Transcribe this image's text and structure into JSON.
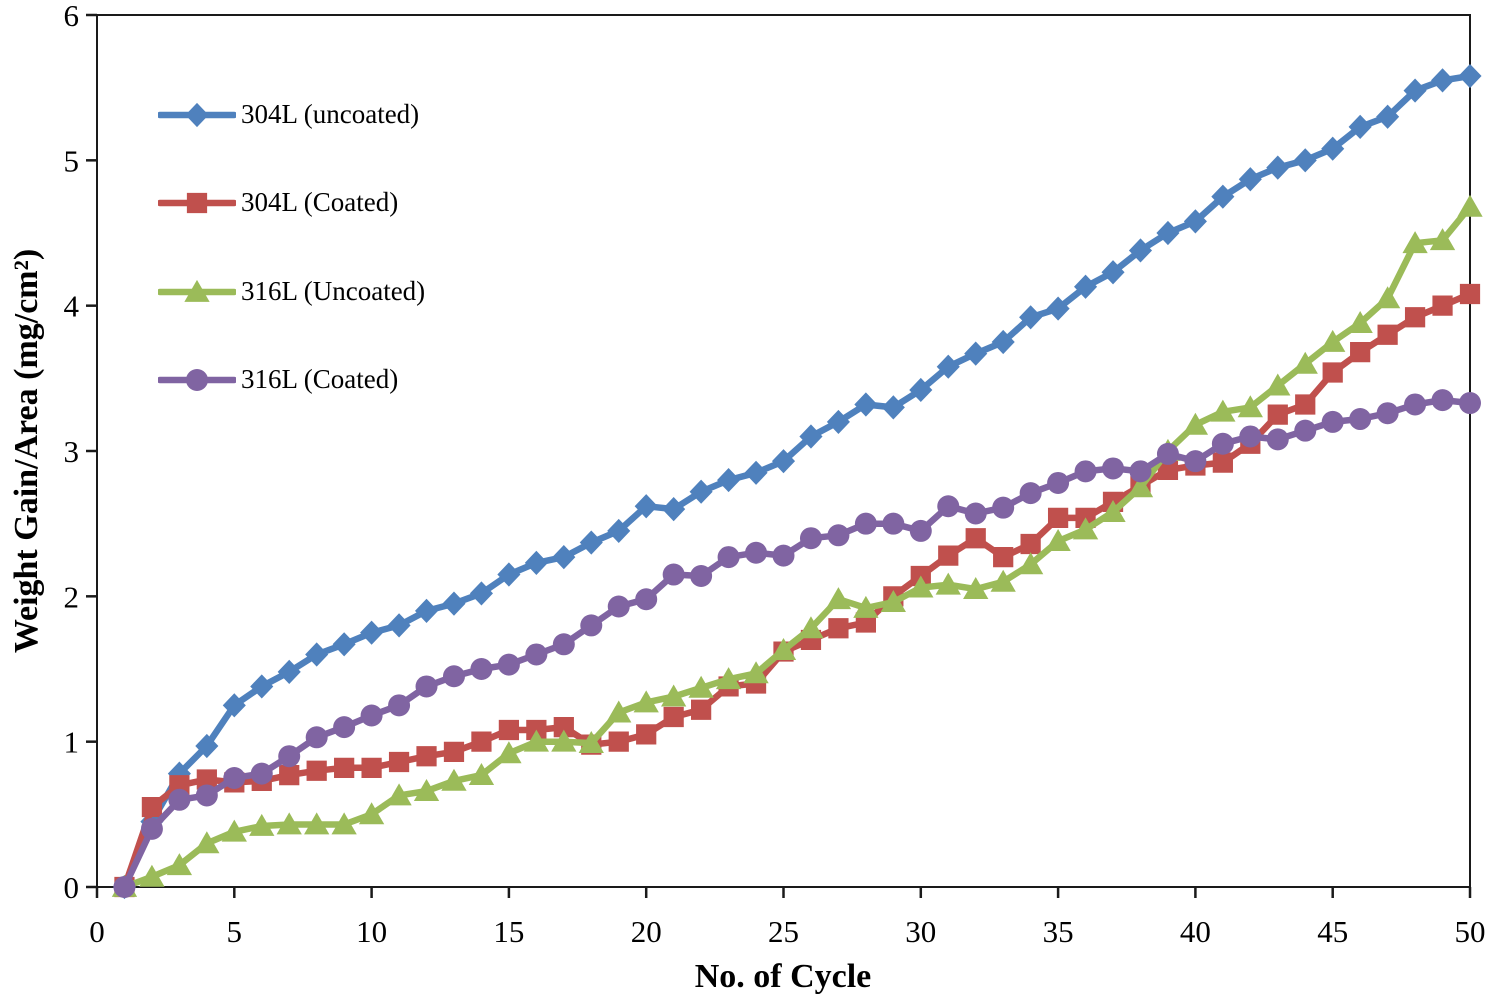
{
  "chart_data": {
    "type": "line",
    "title": "",
    "xlabel": "No. of Cycle",
    "ylabel": "Weight Gain/Area (mg/cm²)",
    "xlim": [
      0,
      50
    ],
    "ylim": [
      0,
      6
    ],
    "x_ticks": [
      0,
      5,
      10,
      15,
      20,
      25,
      30,
      35,
      40,
      45,
      50
    ],
    "y_ticks": [
      0,
      1,
      2,
      3,
      4,
      5,
      6
    ],
    "grid": false,
    "legend_position": "inside top-left",
    "axis_color": "#1a1a1a",
    "x": [
      1,
      2,
      3,
      4,
      5,
      6,
      7,
      8,
      9,
      10,
      11,
      12,
      13,
      14,
      15,
      16,
      17,
      18,
      19,
      20,
      21,
      22,
      23,
      24,
      25,
      26,
      27,
      28,
      29,
      30,
      31,
      32,
      33,
      34,
      35,
      36,
      37,
      38,
      39,
      40,
      41,
      42,
      43,
      44,
      45,
      46,
      47,
      48,
      49,
      50
    ],
    "series": [
      {
        "name": "304L (uncoated)",
        "marker": "diamond",
        "color": "#4f81bd",
        "values": [
          0,
          0.45,
          0.78,
          0.97,
          1.25,
          1.38,
          1.48,
          1.6,
          1.67,
          1.75,
          1.8,
          1.9,
          1.95,
          2.02,
          2.15,
          2.23,
          2.27,
          2.37,
          2.45,
          2.62,
          2.6,
          2.72,
          2.8,
          2.85,
          2.93,
          3.1,
          3.2,
          3.32,
          3.3,
          3.42,
          3.58,
          3.67,
          3.75,
          3.92,
          3.98,
          4.13,
          4.23,
          4.38,
          4.5,
          4.58,
          4.75,
          4.87,
          4.95,
          5.0,
          5.08,
          5.23,
          5.3,
          5.48,
          5.55,
          5.58
        ]
      },
      {
        "name": "304L (Coated)",
        "marker": "square",
        "color": "#c0504d",
        "values": [
          0,
          0.55,
          0.7,
          0.74,
          0.72,
          0.73,
          0.77,
          0.8,
          0.82,
          0.82,
          0.86,
          0.9,
          0.93,
          1.0,
          1.08,
          1.08,
          1.1,
          0.98,
          1.0,
          1.05,
          1.17,
          1.22,
          1.38,
          1.4,
          1.62,
          1.7,
          1.78,
          1.82,
          2.0,
          2.14,
          2.28,
          2.4,
          2.27,
          2.36,
          2.54,
          2.54,
          2.65,
          2.76,
          2.87,
          2.9,
          2.92,
          3.05,
          3.25,
          3.32,
          3.54,
          3.68,
          3.8,
          3.92,
          4.0,
          4.08
        ]
      },
      {
        "name": "316L (Uncoated)",
        "marker": "triangle",
        "color": "#9bbb59",
        "values": [
          0,
          0.07,
          0.15,
          0.3,
          0.38,
          0.42,
          0.43,
          0.43,
          0.43,
          0.5,
          0.63,
          0.66,
          0.73,
          0.77,
          0.92,
          1.0,
          1.0,
          0.99,
          1.2,
          1.27,
          1.31,
          1.37,
          1.43,
          1.47,
          1.63,
          1.78,
          1.98,
          1.92,
          1.96,
          2.06,
          2.08,
          2.05,
          2.1,
          2.22,
          2.38,
          2.46,
          2.58,
          2.75,
          3.0,
          3.18,
          3.27,
          3.3,
          3.45,
          3.6,
          3.75,
          3.88,
          4.05,
          4.43,
          4.45,
          4.68
        ]
      },
      {
        "name": "316L (Coated)",
        "marker": "circle",
        "color": "#8064a2",
        "values": [
          0,
          0.4,
          0.6,
          0.63,
          0.75,
          0.78,
          0.9,
          1.03,
          1.1,
          1.18,
          1.25,
          1.38,
          1.45,
          1.5,
          1.53,
          1.6,
          1.67,
          1.8,
          1.93,
          1.98,
          2.15,
          2.14,
          2.27,
          2.3,
          2.28,
          2.4,
          2.42,
          2.5,
          2.5,
          2.45,
          2.62,
          2.57,
          2.61,
          2.71,
          2.78,
          2.86,
          2.88,
          2.86,
          2.98,
          2.93,
          3.05,
          3.1,
          3.08,
          3.14,
          3.2,
          3.22,
          3.26,
          3.32,
          3.35,
          3.33
        ]
      }
    ]
  }
}
